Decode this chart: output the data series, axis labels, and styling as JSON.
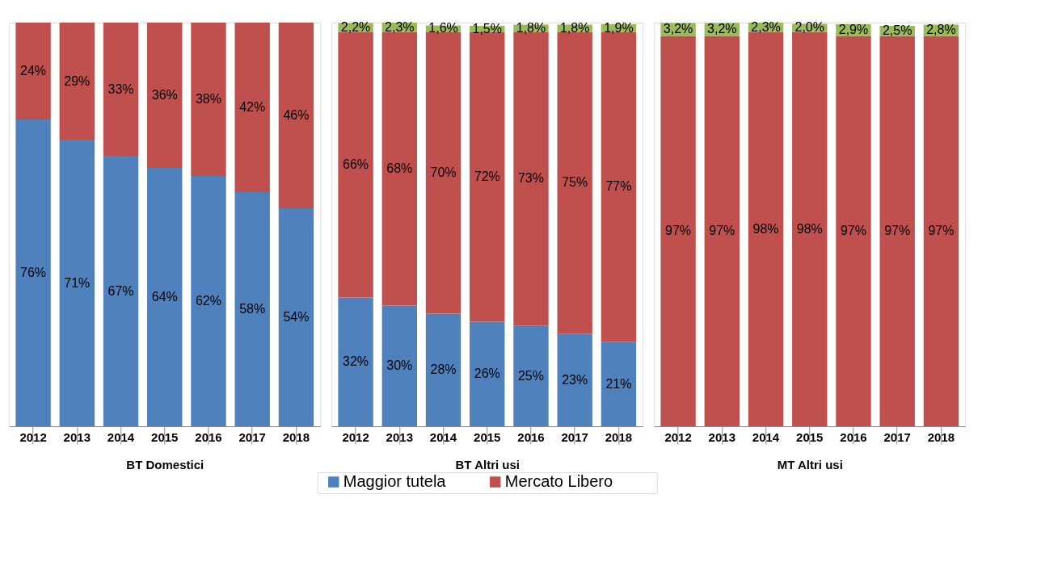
{
  "chart_data": [
    {
      "type": "bar",
      "stacked": true,
      "xlabel": "BT Domestici",
      "tick_labels": "x",
      "legend": "bottom",
      "categories": [
        "2012",
        "2013",
        "2014",
        "2015",
        "2016",
        "2017",
        "2018"
      ],
      "series": [
        {
          "name": "Maggior tutela",
          "color": "#4f81bd",
          "values": [
            76,
            71,
            67,
            64,
            62,
            58,
            54
          ],
          "value_labels": [
            "76%",
            "71%",
            "67%",
            "64%",
            "62%",
            "58%",
            "54%"
          ]
        },
        {
          "name": "Mercato Libero",
          "color": "#c0504d",
          "values": [
            24,
            29,
            33,
            36,
            38,
            42,
            46
          ],
          "value_labels": [
            "24%",
            "29%",
            "33%",
            "36%",
            "38%",
            "42%",
            "46%"
          ]
        }
      ]
    },
    {
      "type": "bar",
      "stacked": true,
      "xlabel": "BT Altri usi",
      "tick_labels": "x",
      "legend": "bottom",
      "categories": [
        "2012",
        "2013",
        "2014",
        "2015",
        "2016",
        "2017",
        "2018"
      ],
      "series": [
        {
          "name": "Maggior tutela",
          "color": "#4f81bd",
          "values": [
            32,
            30,
            28,
            26,
            25,
            23,
            21
          ],
          "value_labels": [
            "32%",
            "30%",
            "28%",
            "26%",
            "25%",
            "23%",
            "21%"
          ]
        },
        {
          "name": "Mercato Libero",
          "color": "#c0504d",
          "values": [
            66,
            68,
            70,
            72,
            73,
            75,
            77
          ],
          "value_labels": [
            "66%",
            "68%",
            "70%",
            "72%",
            "73%",
            "75%",
            "77%"
          ]
        },
        {
          "color": "#9bbb59",
          "values": [
            2.2,
            2.3,
            1.6,
            1.5,
            1.8,
            1.8,
            1.9
          ],
          "value_labels": [
            "2,2%",
            "2,3%",
            "1,6%",
            "1,5%",
            "1,8%",
            "1,8%",
            "1,9%"
          ]
        }
      ]
    },
    {
      "type": "bar",
      "stacked": true,
      "xlabel": "MT Altri usi",
      "tick_labels": "x",
      "legend": "bottom",
      "categories": [
        "2012",
        "2013",
        "2014",
        "2015",
        "2016",
        "2017",
        "2018"
      ],
      "series": [
        {
          "name": "Mercato Libero",
          "color": "#c0504d",
          "values": [
            97,
            97,
            98,
            98,
            97,
            97,
            97
          ],
          "value_labels": [
            "97%",
            "97%",
            "98%",
            "98%",
            "97%",
            "97%",
            "97%"
          ]
        },
        {
          "color": "#9bbb59",
          "values": [
            3.2,
            3.2,
            2.3,
            2.0,
            2.9,
            2.5,
            2.8
          ],
          "value_labels": [
            "3,2%",
            "3,2%",
            "2,3%",
            "2,0%",
            "2,9%",
            "2,5%",
            "2,8%"
          ]
        }
      ]
    }
  ]
}
